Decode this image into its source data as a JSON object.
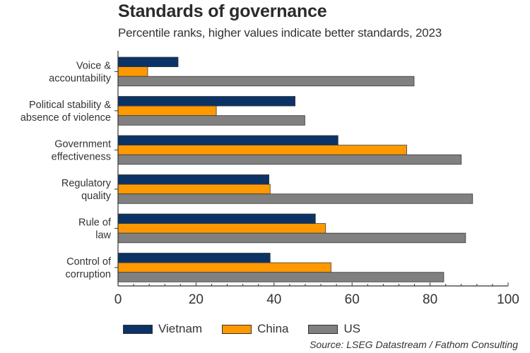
{
  "header": {
    "title": "Standards of governance",
    "subtitle": "Percentile ranks, higher values indicate better standards, 2023"
  },
  "source": "Source: LSEG Datastream / Fathom Consulting",
  "chart_data": {
    "type": "bar",
    "orientation": "horizontal",
    "title": "Standards of governance",
    "subtitle": "Percentile ranks, higher values indicate better standards, 2023",
    "xlabel": "",
    "ylabel": "",
    "xlim": [
      0,
      100
    ],
    "x_ticks": [
      0,
      20,
      40,
      60,
      80,
      100
    ],
    "x_tick_labels": [
      "0",
      "20",
      "40",
      "60",
      "80",
      "100"
    ],
    "x_minor_tick_step": 4,
    "grid": false,
    "legend_position": "bottom",
    "categories": [
      [
        "Voice &",
        "accountability"
      ],
      [
        "Political stability &",
        "absence of violence"
      ],
      [
        "Government",
        "effectiveness"
      ],
      [
        "Regulatory",
        "quality"
      ],
      [
        "Rule of",
        "law"
      ],
      [
        "Control of",
        "corruption"
      ]
    ],
    "series": [
      {
        "name": "Vietnam",
        "color": "#0b3366",
        "values": [
          15.4,
          45.4,
          56.4,
          38.7,
          50.6,
          39.0
        ]
      },
      {
        "name": "China",
        "color": "#ff9900",
        "values": [
          7.6,
          25.2,
          74.0,
          39.0,
          53.2,
          54.6
        ]
      },
      {
        "name": "US",
        "color": "#808080",
        "values": [
          75.9,
          47.9,
          88.0,
          90.9,
          89.1,
          83.5
        ]
      }
    ]
  }
}
